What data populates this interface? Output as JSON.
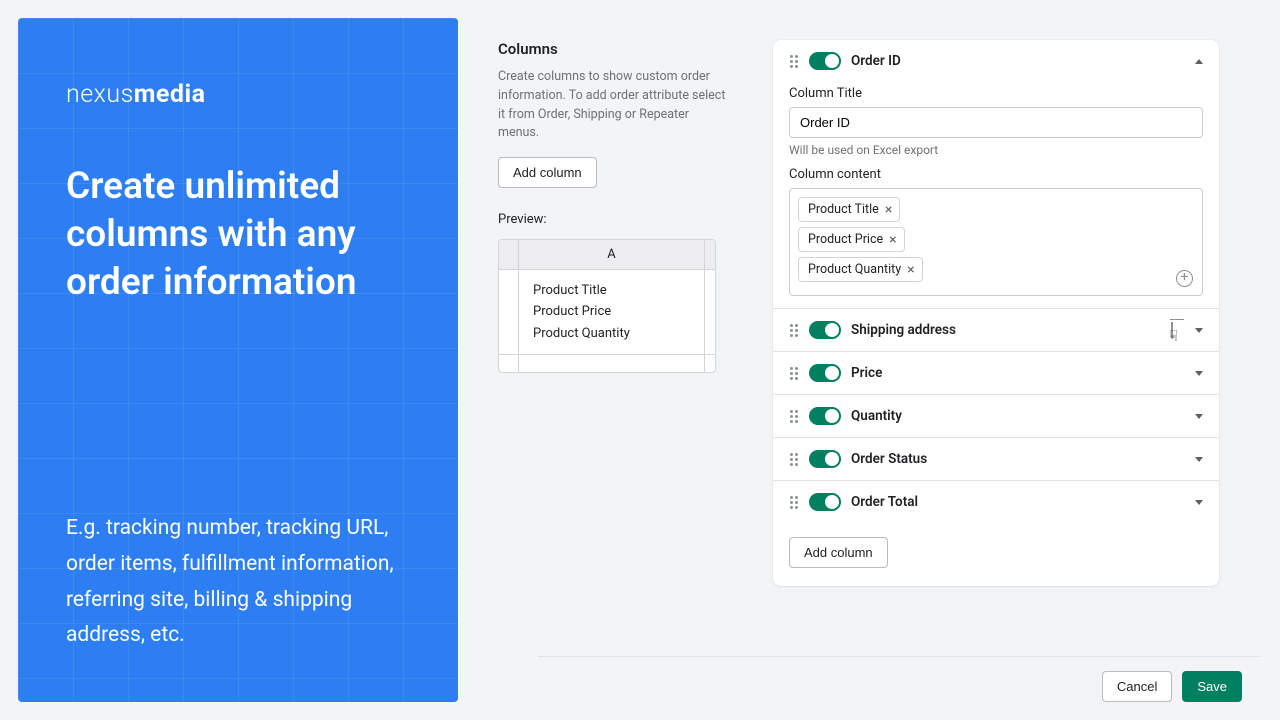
{
  "banner": {
    "logo_light": "nexus",
    "logo_bold": "media",
    "headline": "Create unlimited columns with any order information",
    "subtext": "E.g. tracking number, tracking URL, order items, fulfillment information, referring site, billing & shipping address, etc.",
    "bg_color": "#2c7ef2"
  },
  "columns_section": {
    "title": "Columns",
    "description": "Create columns to show custom order information. To add order attribute select it from Order, Shipping or Repeater menus.",
    "add_button": "Add column",
    "preview_label": "Preview:",
    "preview_header": "A",
    "preview_cells": [
      "Product Title",
      "Product Price",
      "Product Quantity"
    ]
  },
  "panel": {
    "expanded": {
      "title": "Order ID",
      "field_title_label": "Column Title",
      "field_title_value": "Order ID",
      "field_title_hint": "Will be used on Excel export",
      "content_label": "Column content",
      "tags": [
        "Product Title",
        "Product Price",
        "Product Quantity"
      ]
    },
    "rows": [
      {
        "title": "Shipping address",
        "show_trash": true
      },
      {
        "title": "Price",
        "show_trash": false
      },
      {
        "title": "Quantity",
        "show_trash": false
      },
      {
        "title": "Order Status",
        "show_trash": false
      },
      {
        "title": "Order Total",
        "show_trash": false
      }
    ],
    "add_button": "Add column"
  },
  "actions": {
    "cancel": "Cancel",
    "save": "Save"
  },
  "colors": {
    "toggle_on": "#008060",
    "primary_btn": "#008060"
  }
}
